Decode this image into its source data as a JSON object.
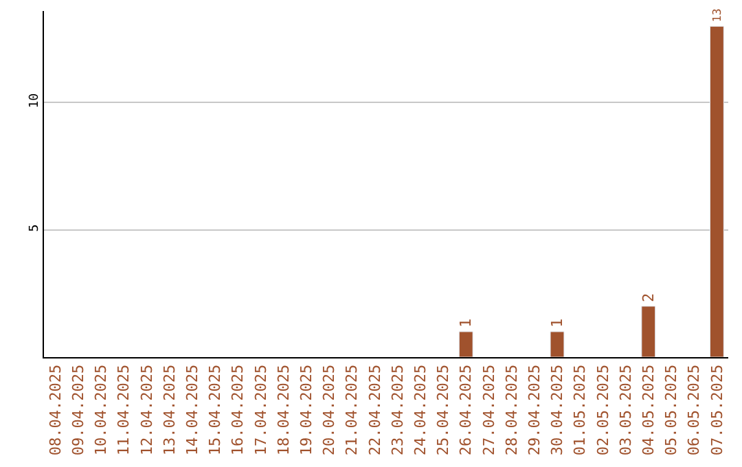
{
  "chart_data": {
    "type": "bar",
    "categories": [
      "08.04.2025",
      "09.04.2025",
      "10.04.2025",
      "11.04.2025",
      "12.04.2025",
      "13.04.2025",
      "14.04.2025",
      "15.04.2025",
      "16.04.2025",
      "17.04.2025",
      "18.04.2025",
      "19.04.2025",
      "20.04.2025",
      "21.04.2025",
      "22.04.2025",
      "23.04.2025",
      "24.04.2025",
      "25.04.2025",
      "26.04.2025",
      "27.04.2025",
      "28.04.2025",
      "29.04.2025",
      "30.04.2025",
      "01.05.2025",
      "02.05.2025",
      "03.05.2025",
      "04.05.2025",
      "05.05.2025",
      "06.05.2025",
      "07.05.2025"
    ],
    "values": [
      null,
      null,
      null,
      null,
      null,
      null,
      null,
      null,
      null,
      null,
      null,
      null,
      null,
      null,
      null,
      null,
      null,
      null,
      1,
      null,
      null,
      null,
      1,
      null,
      null,
      null,
      2,
      null,
      null,
      13
    ],
    "value_labels": [
      null,
      null,
      null,
      null,
      null,
      null,
      null,
      null,
      null,
      null,
      null,
      null,
      null,
      null,
      null,
      null,
      null,
      null,
      "1",
      null,
      null,
      null,
      "1",
      null,
      null,
      null,
      "2",
      null,
      null,
      "13"
    ],
    "color": "#a0522d",
    "ylim": [
      0,
      13.6
    ],
    "yticks": [
      5,
      10
    ],
    "grid": "y",
    "legend": false
  }
}
